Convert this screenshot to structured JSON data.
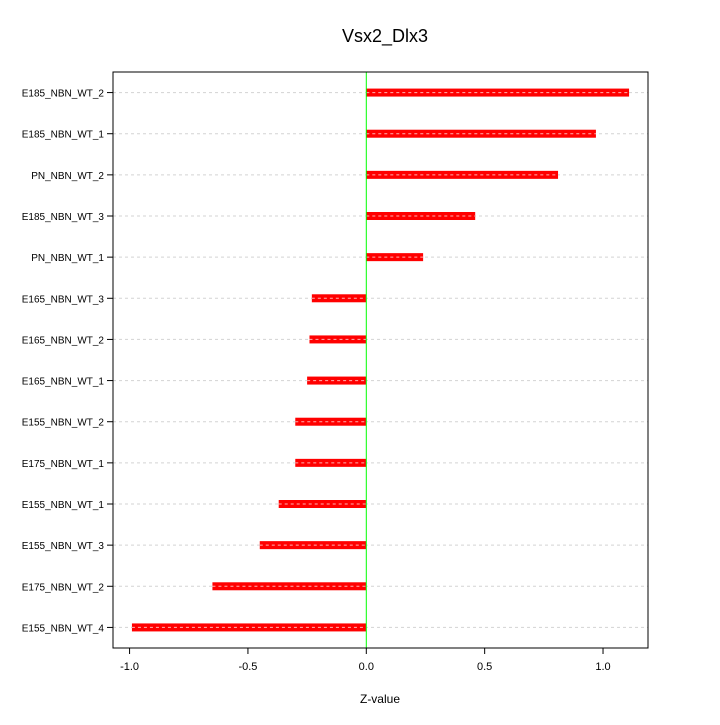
{
  "chart_data": {
    "type": "bar",
    "orientation": "horizontal",
    "title": "Vsx2_Dlx3",
    "xlabel": "Z-value",
    "ylabel": "",
    "xlim": [
      -1.07,
      1.19
    ],
    "xticks": [
      -1.0,
      -0.5,
      0.0,
      0.5,
      1.0
    ],
    "xtick_labels": [
      "-1.0",
      "-0.5",
      "0.0",
      "0.5",
      "1.0"
    ],
    "grid": "horizontal dashed",
    "reference_line": 0.0,
    "categories": [
      "E185_NBN_WT_2",
      "E185_NBN_WT_1",
      "PN_NBN_WT_2",
      "E185_NBN_WT_3",
      "PN_NBN_WT_1",
      "E165_NBN_WT_3",
      "E165_NBN_WT_2",
      "E165_NBN_WT_1",
      "E155_NBN_WT_2",
      "E175_NBN_WT_1",
      "E155_NBN_WT_1",
      "E155_NBN_WT_3",
      "E175_NBN_WT_2",
      "E155_NBN_WT_4"
    ],
    "values": [
      1.11,
      0.97,
      0.81,
      0.46,
      0.24,
      -0.23,
      -0.24,
      -0.25,
      -0.3,
      -0.3,
      -0.37,
      -0.45,
      -0.65,
      -0.99
    ],
    "colors": {
      "bar": "#ff0000",
      "reference_line": "#00ff00",
      "grid": "#d3d3d3",
      "frame": "#000000"
    }
  }
}
